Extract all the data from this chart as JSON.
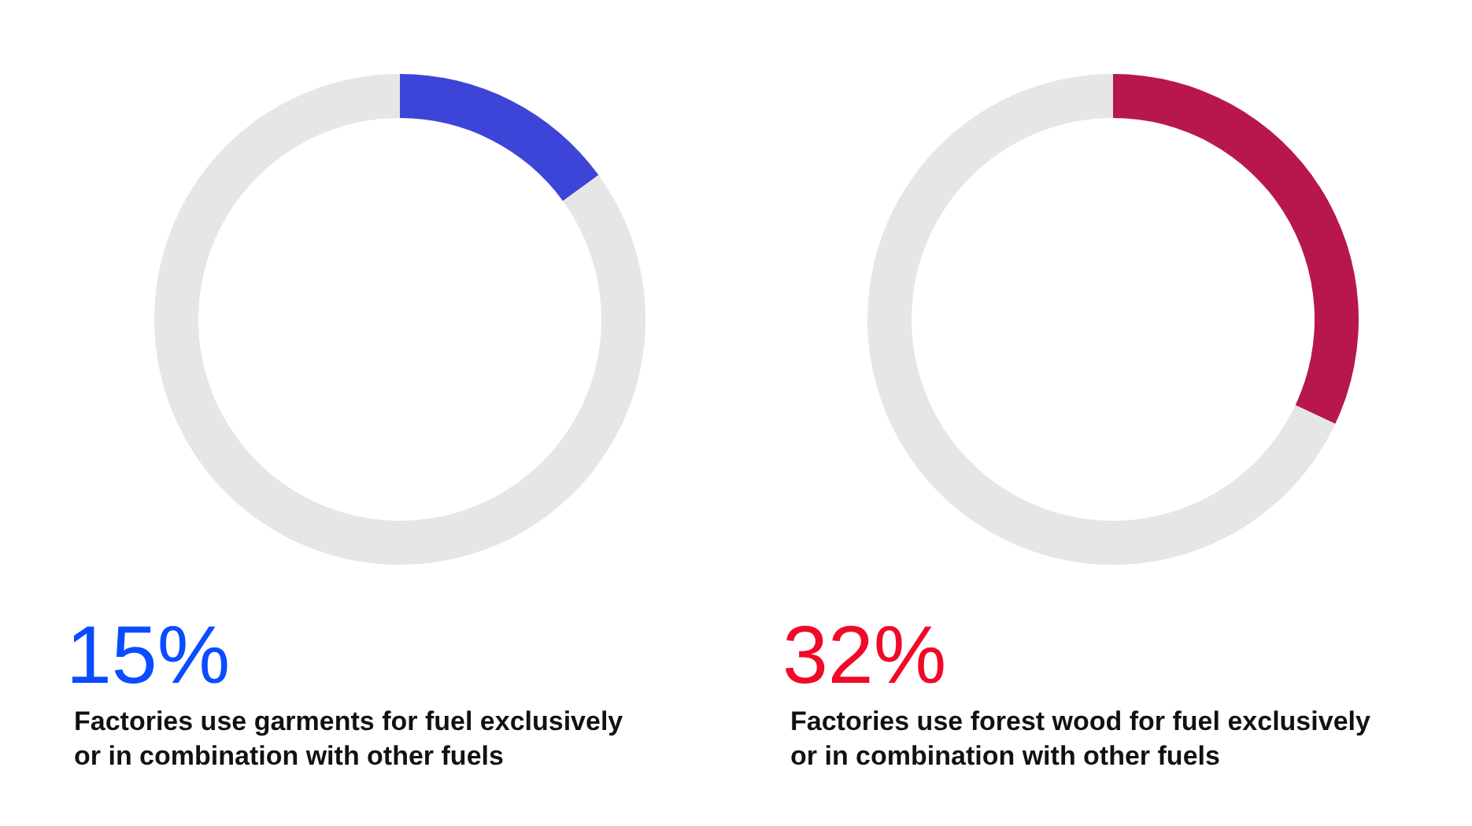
{
  "chart_data": [
    {
      "type": "donut",
      "title": "15%",
      "categories": [
        null,
        null
      ],
      "values": [
        15,
        85
      ],
      "colors": [
        "#3d45d8",
        "#e6e6e6"
      ],
      "annotations": [
        "Factories use garments for fuel exclusively",
        "or in combination with other fuels"
      ]
    },
    {
      "type": "donut",
      "title": "32%",
      "categories": [
        null,
        null
      ],
      "values": [
        32,
        68
      ],
      "colors": [
        "#b8174e",
        "#e6e6e6"
      ],
      "annotations": [
        "Factories use forest wood for fuel exclusively",
        "or in combination with other fuels"
      ]
    }
  ]
}
